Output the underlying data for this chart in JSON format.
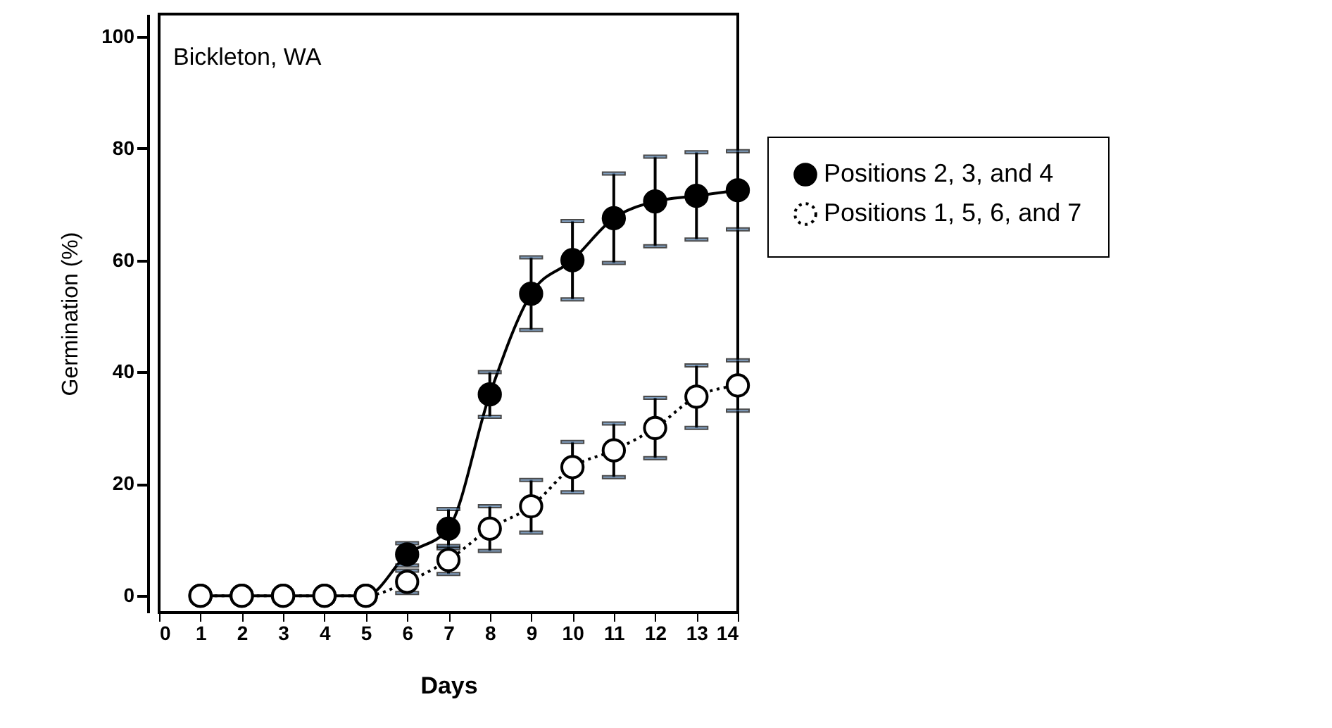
{
  "chart_data": {
    "type": "line",
    "title": "Bickleton, WA",
    "xlabel": "Days",
    "ylabel": "Germination (%)",
    "x": [
      1,
      2,
      3,
      4,
      5,
      6,
      7,
      8,
      9,
      10,
      11,
      12,
      13,
      14
    ],
    "series": [
      {
        "name": "Positions 2, 3, and 4",
        "color": "#000000",
        "line_style": "solid",
        "values": [
          0,
          0,
          0,
          0,
          0,
          7.4,
          12,
          36,
          54,
          60,
          67.5,
          70.5,
          71.5,
          72.5
        ],
        "errors": [
          null,
          null,
          null,
          null,
          null,
          2,
          3.5,
          4,
          6.5,
          7,
          8,
          8,
          7.8,
          7
        ]
      },
      {
        "name": "Positions 1, 5, 6, and 7",
        "color": "#000000",
        "line_style": "dotted",
        "values": [
          0,
          0,
          0,
          0,
          0,
          2.5,
          6.4,
          12,
          16,
          23,
          26,
          30,
          35.6,
          37.6
        ],
        "errors": [
          null,
          null,
          null,
          null,
          null,
          2,
          2.5,
          4,
          4.7,
          4.5,
          4.8,
          5.4,
          5.6,
          4.5
        ]
      }
    ],
    "marker": "circle",
    "legend": "right",
    "xlim": [
      0,
      14
    ],
    "xticks": [
      0,
      1,
      2,
      3,
      4,
      5,
      6,
      7,
      8,
      9,
      10,
      11,
      12,
      13,
      14
    ],
    "ylim": [
      -3,
      104
    ],
    "yticks": [
      0,
      20,
      40,
      60,
      80,
      100
    ],
    "grid": false
  }
}
